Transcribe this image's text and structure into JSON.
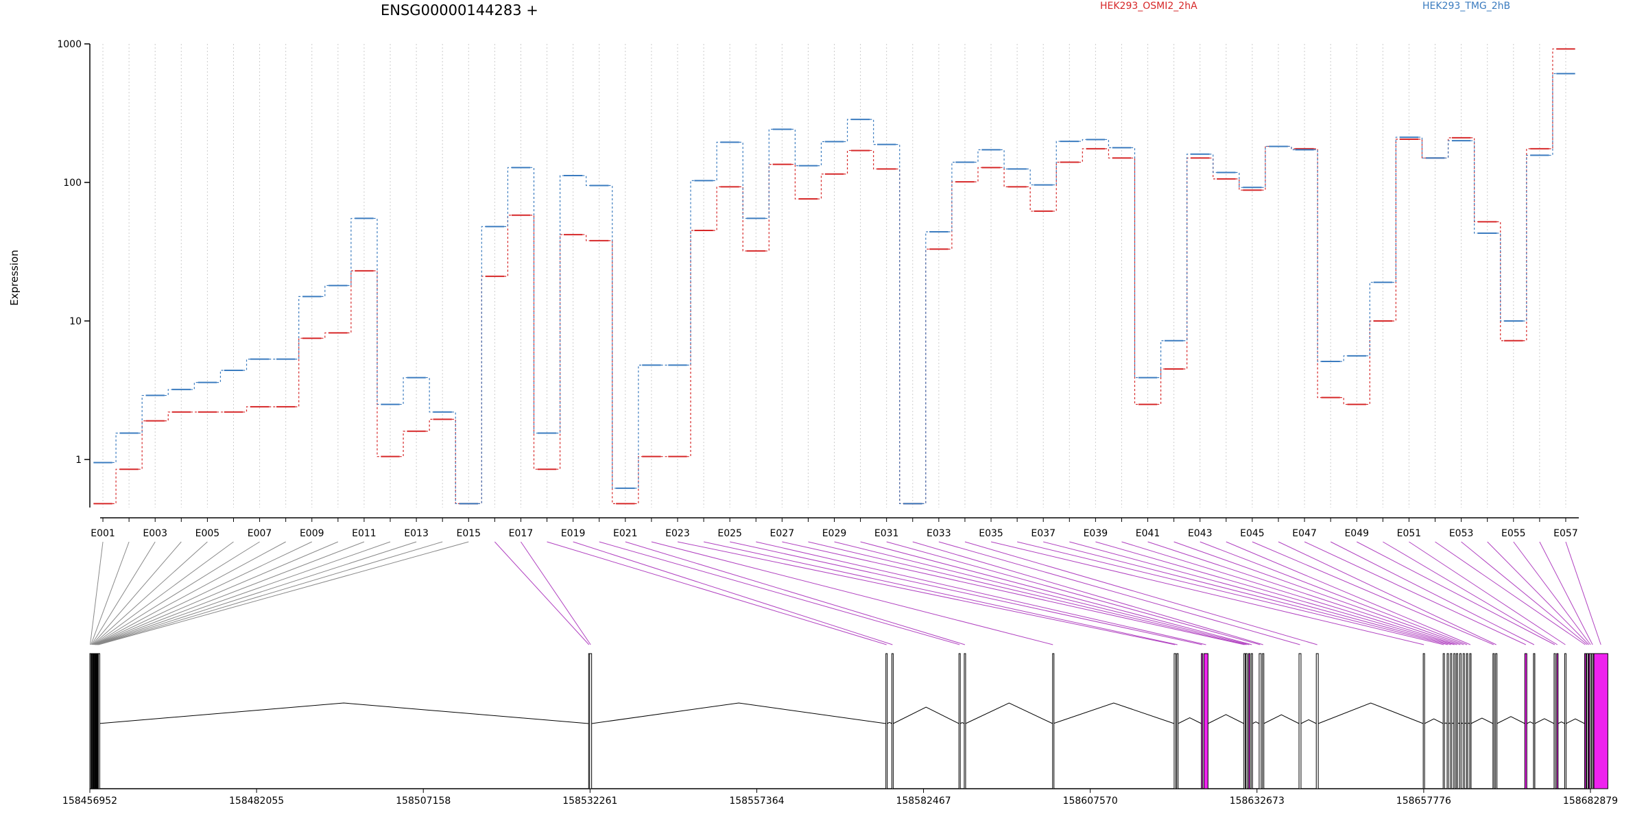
{
  "header": {
    "title": "ENSG00000144283 +",
    "legend": [
      {
        "name": "HEK293_OSMI2_2hA",
        "color": "#d62728"
      },
      {
        "name": "HEK293_TMG_2hB",
        "color": "#3a7bbf"
      }
    ]
  },
  "colors": {
    "exon_fill": "#d9d9d9",
    "highlight_fill": "#ee22ee",
    "connector_gray": "#888888",
    "connector_magenta": "#b040c0",
    "grid": "#cccccc"
  },
  "chart_data": {
    "type": "line",
    "title": "ENSG00000144283 +",
    "xlabel": "",
    "ylabel": "Expression",
    "y_scale": "log",
    "ylim": [
      0.45,
      1000
    ],
    "y_ticks": [
      "1",
      "10",
      "100",
      "1000"
    ],
    "grid": "vertical dotted lines at every exon",
    "legend_placement": "top",
    "categories": [
      "E001",
      "E002",
      "E003",
      "E004",
      "E005",
      "E006",
      "E007",
      "E008",
      "E009",
      "E010",
      "E011",
      "E012",
      "E013",
      "E014",
      "E015",
      "E016",
      "E017",
      "E018",
      "E019",
      "E020",
      "E021",
      "E022",
      "E023",
      "E024",
      "E025",
      "E026",
      "E027",
      "E028",
      "E029",
      "E030",
      "E031",
      "E032",
      "E033",
      "E034",
      "E035",
      "E036",
      "E037",
      "E038",
      "E039",
      "E040",
      "E041",
      "E042",
      "E043",
      "E044",
      "E045",
      "E046",
      "E047",
      "E048",
      "E049",
      "E050",
      "E051",
      "E052",
      "E053",
      "E054",
      "E055",
      "E056",
      "E057"
    ],
    "x_tick_labels": [
      "E001",
      "E003",
      "E005",
      "E007",
      "E009",
      "E011",
      "E013",
      "E015",
      "E017",
      "E019",
      "E021",
      "E023",
      "E025",
      "E027",
      "E029",
      "E031",
      "E033",
      "E035",
      "E037",
      "E039",
      "E041",
      "E043",
      "E045",
      "E047",
      "E049",
      "E051",
      "E053",
      "E055",
      "E057"
    ],
    "series": [
      {
        "name": "HEK293_OSMI2_2hA",
        "color": "#d62728",
        "values": [
          0.48,
          0.85,
          1.9,
          2.2,
          2.2,
          2.2,
          2.4,
          2.4,
          7.5,
          8.2,
          23,
          1.05,
          1.6,
          1.95,
          0.48,
          21,
          58,
          0.85,
          42,
          38,
          0.48,
          1.05,
          1.05,
          45,
          93,
          32,
          135,
          76,
          115,
          170,
          125,
          0.48,
          33,
          101,
          128,
          93,
          62,
          140,
          175,
          150,
          2.5,
          4.5,
          150,
          106,
          88,
          182,
          175,
          2.8,
          2.5,
          10,
          205,
          150,
          210,
          52,
          7.2,
          175,
          920
        ]
      },
      {
        "name": "HEK293_TMG_2hB",
        "color": "#3a7bbf",
        "values": [
          0.95,
          1.55,
          2.9,
          3.2,
          3.6,
          4.4,
          5.3,
          5.3,
          15,
          18,
          55,
          2.5,
          3.9,
          2.2,
          0.48,
          48,
          128,
          1.55,
          112,
          95,
          0.62,
          4.8,
          4.8,
          103,
          195,
          55,
          242,
          132,
          197,
          285,
          188,
          0.48,
          44,
          140,
          172,
          125,
          96,
          198,
          204,
          178,
          3.9,
          7.2,
          160,
          118,
          92,
          182,
          172,
          5.1,
          5.6,
          19,
          212,
          150,
          200,
          43,
          10,
          157,
          610
        ]
      }
    ],
    "gene_model": {
      "genomic_ticks": [
        "158456952",
        "158482055",
        "158507158",
        "158532261",
        "158557364",
        "158582467",
        "158607570",
        "158632673",
        "158657776",
        "158682879"
      ],
      "genomic_range": [
        158456952,
        158682879
      ],
      "exon_starts": [
        158456952,
        158457100,
        158457200,
        158457300,
        158457400,
        158457480,
        158457560,
        158457640,
        158457720,
        158457800,
        158457880,
        158457960,
        158458040,
        158458140,
        158458240,
        158532050,
        158532200,
        158576800,
        158577700,
        158587800,
        158588600,
        158601900,
        158620200,
        158620600,
        158624300,
        158624700,
        158630700,
        158631000,
        158631400,
        158631800,
        158633000,
        158633500,
        158639000,
        158641600,
        158657700,
        158660700,
        158661300,
        158661800,
        158662300,
        158662700,
        158663200,
        158663700,
        158664200,
        158664700,
        158668200,
        158668600,
        158673000,
        158674300,
        158677400,
        158677800,
        158679000,
        158682000,
        158682300,
        158682600,
        158682800,
        158683100,
        158683400
      ],
      "exon_ends": [
        158457050,
        158457150,
        158457250,
        158457350,
        158457450,
        158457530,
        158457610,
        158457690,
        158457770,
        158457850,
        158457930,
        158458010,
        158458090,
        158458190,
        158458290,
        158532150,
        158532500,
        158577000,
        158577900,
        158588000,
        158588800,
        158602000,
        158620450,
        158620800,
        158624500,
        158625300,
        158630900,
        158631200,
        158631600,
        158632000,
        158633300,
        158633700,
        158639300,
        158641900,
        158657900,
        158660900,
        158661500,
        158662000,
        158662500,
        158662900,
        158663400,
        158663900,
        158664400,
        158664900,
        158668400,
        158668800,
        158673300,
        158674500,
        158677600,
        158678000,
        158679200,
        158682200,
        158682500,
        158682700,
        158683000,
        158683300,
        158685500
      ],
      "highlighted_exons": [
        "E016",
        "E017",
        "E018",
        "E019",
        "E020",
        "E021",
        "E022",
        "E023",
        "E024",
        "E025",
        "E026",
        "E027",
        "E028",
        "E029",
        "E030",
        "E031",
        "E032",
        "E033",
        "E034",
        "E035",
        "E036",
        "E037",
        "E038",
        "E039",
        "E040",
        "E041",
        "E042",
        "E043",
        "E044",
        "E045",
        "E046",
        "E047",
        "E048",
        "E049",
        "E050",
        "E051",
        "E052",
        "E053",
        "E054",
        "E055",
        "E056",
        "E057"
      ],
      "filled_exons": [
        "E025",
        "E026",
        "E029",
        "E047",
        "E050",
        "E052",
        "E054",
        "E057"
      ],
      "gray_exons": [
        "E043",
        "E044",
        "E045",
        "E048"
      ]
    }
  }
}
